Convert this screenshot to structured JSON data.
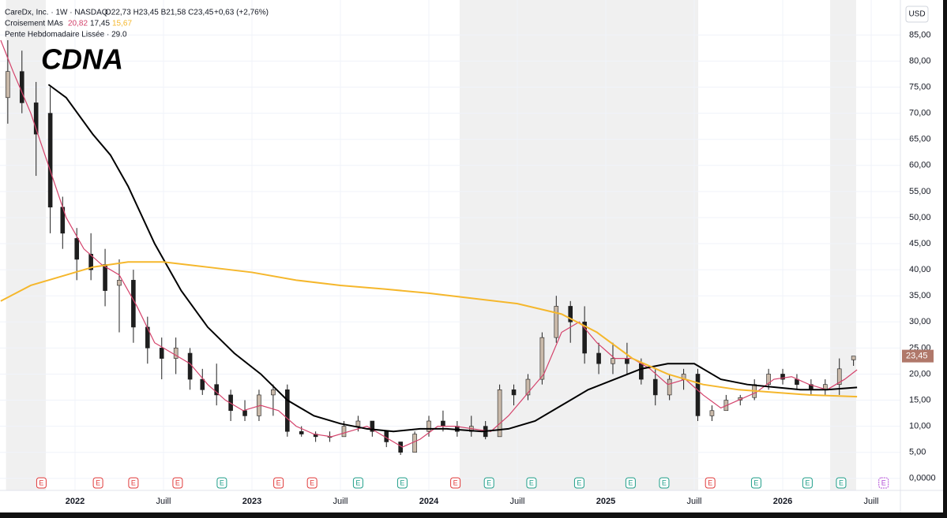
{
  "chart_data": {
    "type": "candlestick",
    "ticker": "CDNA",
    "currency": "USD",
    "header": {
      "symbol": "CareDx, Inc. · 1W · NASDAQ",
      "ohlc": "O22,73 H23,45 B21,58 C23,45",
      "change": "+0,63 (+2,76%)",
      "ma_name": "Croisement MAs",
      "ma_values": [
        "20,82",
        "17,45",
        "15,67"
      ],
      "indicator": "Pente Hebdomadaire Lissée · 29.0"
    },
    "xlim": [
      2021.576,
      2026.665
    ],
    "xticks": [
      {
        "value": 2022,
        "label": "2022"
      },
      {
        "value": 2022.5,
        "label": "Juill"
      },
      {
        "value": 2023,
        "label": "2023"
      },
      {
        "value": 2023.5,
        "label": "Juill"
      },
      {
        "value": 2024,
        "label": "2024"
      },
      {
        "value": 2024.5,
        "label": "Juill"
      },
      {
        "value": 2025,
        "label": "2025"
      },
      {
        "value": 2025.5,
        "label": "Juill"
      },
      {
        "value": 2026,
        "label": "2026"
      },
      {
        "value": 2026.5,
        "label": "Juill"
      }
    ],
    "ylim": [
      -2.3,
      90.5
    ],
    "yticks": [
      {
        "value": 0,
        "label": "0,0000"
      },
      {
        "value": 5,
        "label": "5,00"
      },
      {
        "value": 10,
        "label": "10,00"
      },
      {
        "value": 15,
        "label": "15,00"
      },
      {
        "value": 20,
        "label": "20,00"
      },
      {
        "value": 25,
        "label": "25,00"
      },
      {
        "value": 30,
        "label": "30,00"
      },
      {
        "value": 35,
        "label": "35,00"
      },
      {
        "value": 40,
        "label": "40,00"
      },
      {
        "value": 45,
        "label": "45,00"
      },
      {
        "value": 50,
        "label": "50,00"
      },
      {
        "value": 55,
        "label": "55,00"
      },
      {
        "value": 60,
        "label": "60,00"
      },
      {
        "value": 65,
        "label": "65,00"
      },
      {
        "value": 70,
        "label": "70,00"
      },
      {
        "value": 75,
        "label": "75,00"
      },
      {
        "value": 80,
        "label": "80,00"
      },
      {
        "value": 85,
        "label": "85,00"
      }
    ],
    "grid": true,
    "shaded_ranges": [
      [
        2021.61,
        2021.835
      ],
      [
        2024.174,
        2025.522
      ],
      [
        2026.268,
        2026.415
      ]
    ],
    "candles": {
      "up_color": "#c9b9a9",
      "down_color": "#1e1e1e",
      "x": [
        2021.62,
        2021.7,
        2021.78,
        2021.86,
        2021.93,
        2022.01,
        2022.09,
        2022.17,
        2022.25,
        2022.33,
        2022.41,
        2022.49,
        2022.57,
        2022.65,
        2022.72,
        2022.8,
        2022.88,
        2022.96,
        2023.04,
        2023.12,
        2023.2,
        2023.28,
        2023.36,
        2023.44,
        2023.52,
        2023.6,
        2023.68,
        2023.76,
        2023.84,
        2023.92,
        2024.0,
        2024.08,
        2024.16,
        2024.24,
        2024.32,
        2024.4,
        2024.48,
        2024.56,
        2024.64,
        2024.72,
        2024.8,
        2024.88,
        2024.96,
        2025.04,
        2025.12,
        2025.2,
        2025.28,
        2025.36,
        2025.44,
        2025.52,
        2025.6,
        2025.68,
        2025.76,
        2025.84,
        2025.92,
        2026.0,
        2026.08,
        2026.16,
        2026.24,
        2026.32,
        2026.4
      ],
      "open": [
        73,
        78,
        72,
        70,
        52,
        46,
        43,
        41,
        37,
        38,
        29,
        25,
        23,
        24,
        19,
        18,
        16,
        13,
        12,
        16,
        17,
        9,
        8.5,
        8,
        8,
        10,
        11,
        9,
        7,
        5,
        9,
        11,
        10,
        9,
        10,
        8,
        17,
        16,
        19,
        27,
        33,
        30,
        24,
        22,
        23,
        22,
        19,
        16,
        19,
        20,
        12,
        13,
        15,
        15.5,
        18,
        20,
        19,
        18,
        17,
        18,
        22.73
      ],
      "high": [
        84,
        82,
        76,
        75,
        54,
        48,
        47,
        44,
        42,
        40,
        31,
        27,
        27,
        25,
        21,
        22,
        17,
        15,
        17,
        18,
        18,
        10,
        9,
        9,
        11,
        12,
        11,
        9,
        7,
        9,
        12,
        13,
        11,
        12,
        11,
        18,
        18,
        20,
        28,
        35,
        34,
        33,
        26,
        26,
        26,
        23,
        21,
        20,
        21,
        21,
        14,
        16,
        16,
        19,
        21,
        21,
        20,
        19,
        19,
        23,
        23.45
      ],
      "low": [
        68,
        70,
        58,
        47,
        44,
        38,
        38,
        33,
        28,
        26,
        22,
        19,
        20,
        17,
        16,
        14,
        11,
        11,
        11,
        12,
        8,
        8,
        7,
        7,
        8,
        9,
        8,
        6,
        4.5,
        5,
        8,
        9,
        8,
        8,
        7.5,
        8,
        14,
        15,
        18,
        26,
        26,
        22,
        20,
        20,
        20,
        18,
        14,
        15,
        17,
        11,
        11,
        13,
        14,
        15,
        17,
        18,
        17,
        16,
        16,
        16,
        21.58
      ],
      "close": [
        78,
        72,
        66,
        52,
        47,
        42,
        40,
        36,
        38,
        29,
        25,
        23,
        25,
        19,
        17,
        16,
        13,
        12,
        16,
        17,
        9,
        8.5,
        8,
        8,
        10,
        11,
        9,
        7,
        5,
        8.5,
        11,
        10,
        9,
        10,
        8,
        17,
        16,
        19,
        27,
        33,
        30,
        24,
        22,
        23,
        22,
        19,
        16,
        19,
        20,
        12,
        13,
        15,
        15.5,
        18,
        20,
        19,
        18,
        17,
        18,
        21,
        23.45
      ]
    },
    "series": [
      {
        "color": "#d4426b",
        "x": [
          2021.58,
          2021.65,
          2021.75,
          2021.85,
          2021.95,
          2022.05,
          2022.15,
          2022.25,
          2022.35,
          2022.45,
          2022.55,
          2022.65,
          2022.75,
          2022.85,
          2022.95,
          2023.05,
          2023.15,
          2023.25,
          2023.35,
          2023.45,
          2023.55,
          2023.65,
          2023.75,
          2023.85,
          2023.95,
          2024.05,
          2024.15,
          2024.25,
          2024.35,
          2024.45,
          2024.55,
          2024.65,
          2024.75,
          2024.85,
          2024.95,
          2025.05,
          2025.15,
          2025.25,
          2025.35,
          2025.45,
          2025.55,
          2025.65,
          2025.75,
          2025.85,
          2025.95,
          2026.05,
          2026.15,
          2026.25,
          2026.35,
          2026.42
        ],
        "values": [
          84,
          78,
          70,
          60,
          50,
          44,
          41,
          39,
          33,
          26,
          24,
          22,
          18,
          15,
          13,
          14,
          13,
          10,
          8.5,
          8,
          9,
          10,
          8,
          6,
          7.5,
          10,
          10,
          9.5,
          9,
          12,
          16,
          20,
          28,
          30,
          26,
          23,
          23,
          21,
          18,
          19,
          16,
          13.5,
          15,
          16.5,
          19,
          19.5,
          18,
          17,
          19,
          20.82
        ]
      },
      {
        "color": "#000000",
        "x": [
          2021.85,
          2021.95,
          2022.1,
          2022.2,
          2022.3,
          2022.45,
          2022.6,
          2022.75,
          2022.9,
          2023.05,
          2023.2,
          2023.35,
          2023.5,
          2023.65,
          2023.8,
          2023.95,
          2024.1,
          2024.3,
          2024.45,
          2024.6,
          2024.75,
          2024.9,
          2025.05,
          2025.2,
          2025.35,
          2025.5,
          2025.65,
          2025.8,
          2025.95,
          2026.1,
          2026.25,
          2026.42
        ],
        "values": [
          75.5,
          73,
          66,
          62,
          56,
          45,
          36,
          29,
          24,
          20,
          15,
          12,
          10.5,
          9.5,
          9,
          9.5,
          9.5,
          9,
          9.5,
          11,
          14,
          17,
          19,
          21,
          22,
          22,
          19,
          18,
          17.5,
          17,
          17,
          17.45
        ]
      },
      {
        "color": "#f5b72c",
        "x": [
          2021.58,
          2021.75,
          2021.9,
          2022.1,
          2022.3,
          2022.5,
          2022.75,
          2023.0,
          2023.25,
          2023.5,
          2023.75,
          2024.0,
          2024.25,
          2024.5,
          2024.75,
          2024.95,
          2025.15,
          2025.35,
          2025.55,
          2025.75,
          2025.95,
          2026.15,
          2026.42
        ],
        "values": [
          34,
          37,
          38.5,
          40.5,
          41.5,
          41.5,
          40.5,
          39.5,
          38,
          37,
          36.3,
          35.5,
          34.5,
          33.5,
          31.5,
          28,
          23,
          20,
          18,
          17,
          16.5,
          16,
          15.67
        ]
      }
    ],
    "price_label": {
      "value": 23.45,
      "label": "23,45",
      "color": "#b0786a"
    },
    "events": [
      {
        "x": 2021.81,
        "label": "E",
        "color": "#e03a3a"
      },
      {
        "x": 2022.13,
        "label": "E",
        "color": "#e03a3a"
      },
      {
        "x": 2022.33,
        "label": "E",
        "color": "#e03a3a"
      },
      {
        "x": 2022.58,
        "label": "E",
        "color": "#e03a3a"
      },
      {
        "x": 2022.83,
        "label": "E",
        "color": "#1f9e89"
      },
      {
        "x": 2023.15,
        "label": "E",
        "color": "#e03a3a"
      },
      {
        "x": 2023.34,
        "label": "E",
        "color": "#e03a3a"
      },
      {
        "x": 2023.6,
        "label": "E",
        "color": "#1f9e89"
      },
      {
        "x": 2023.85,
        "label": "E",
        "color": "#1f9e89"
      },
      {
        "x": 2024.15,
        "label": "E",
        "color": "#e03a3a"
      },
      {
        "x": 2024.34,
        "label": "E",
        "color": "#1f9e89"
      },
      {
        "x": 2024.58,
        "label": "E",
        "color": "#1f9e89"
      },
      {
        "x": 2024.85,
        "label": "E",
        "color": "#1f9e89"
      },
      {
        "x": 2025.14,
        "label": "E",
        "color": "#1f9e89"
      },
      {
        "x": 2025.33,
        "label": "E",
        "color": "#1f9e89"
      },
      {
        "x": 2025.59,
        "label": "E",
        "color": "#e03a3a"
      },
      {
        "x": 2025.85,
        "label": "E",
        "color": "#1f9e89"
      },
      {
        "x": 2026.14,
        "label": "E",
        "color": "#1f9e89"
      },
      {
        "x": 2026.33,
        "label": "E",
        "color": "#1f9e89"
      },
      {
        "x": 2026.57,
        "label": "E",
        "color": "#b04ad6"
      }
    ]
  }
}
